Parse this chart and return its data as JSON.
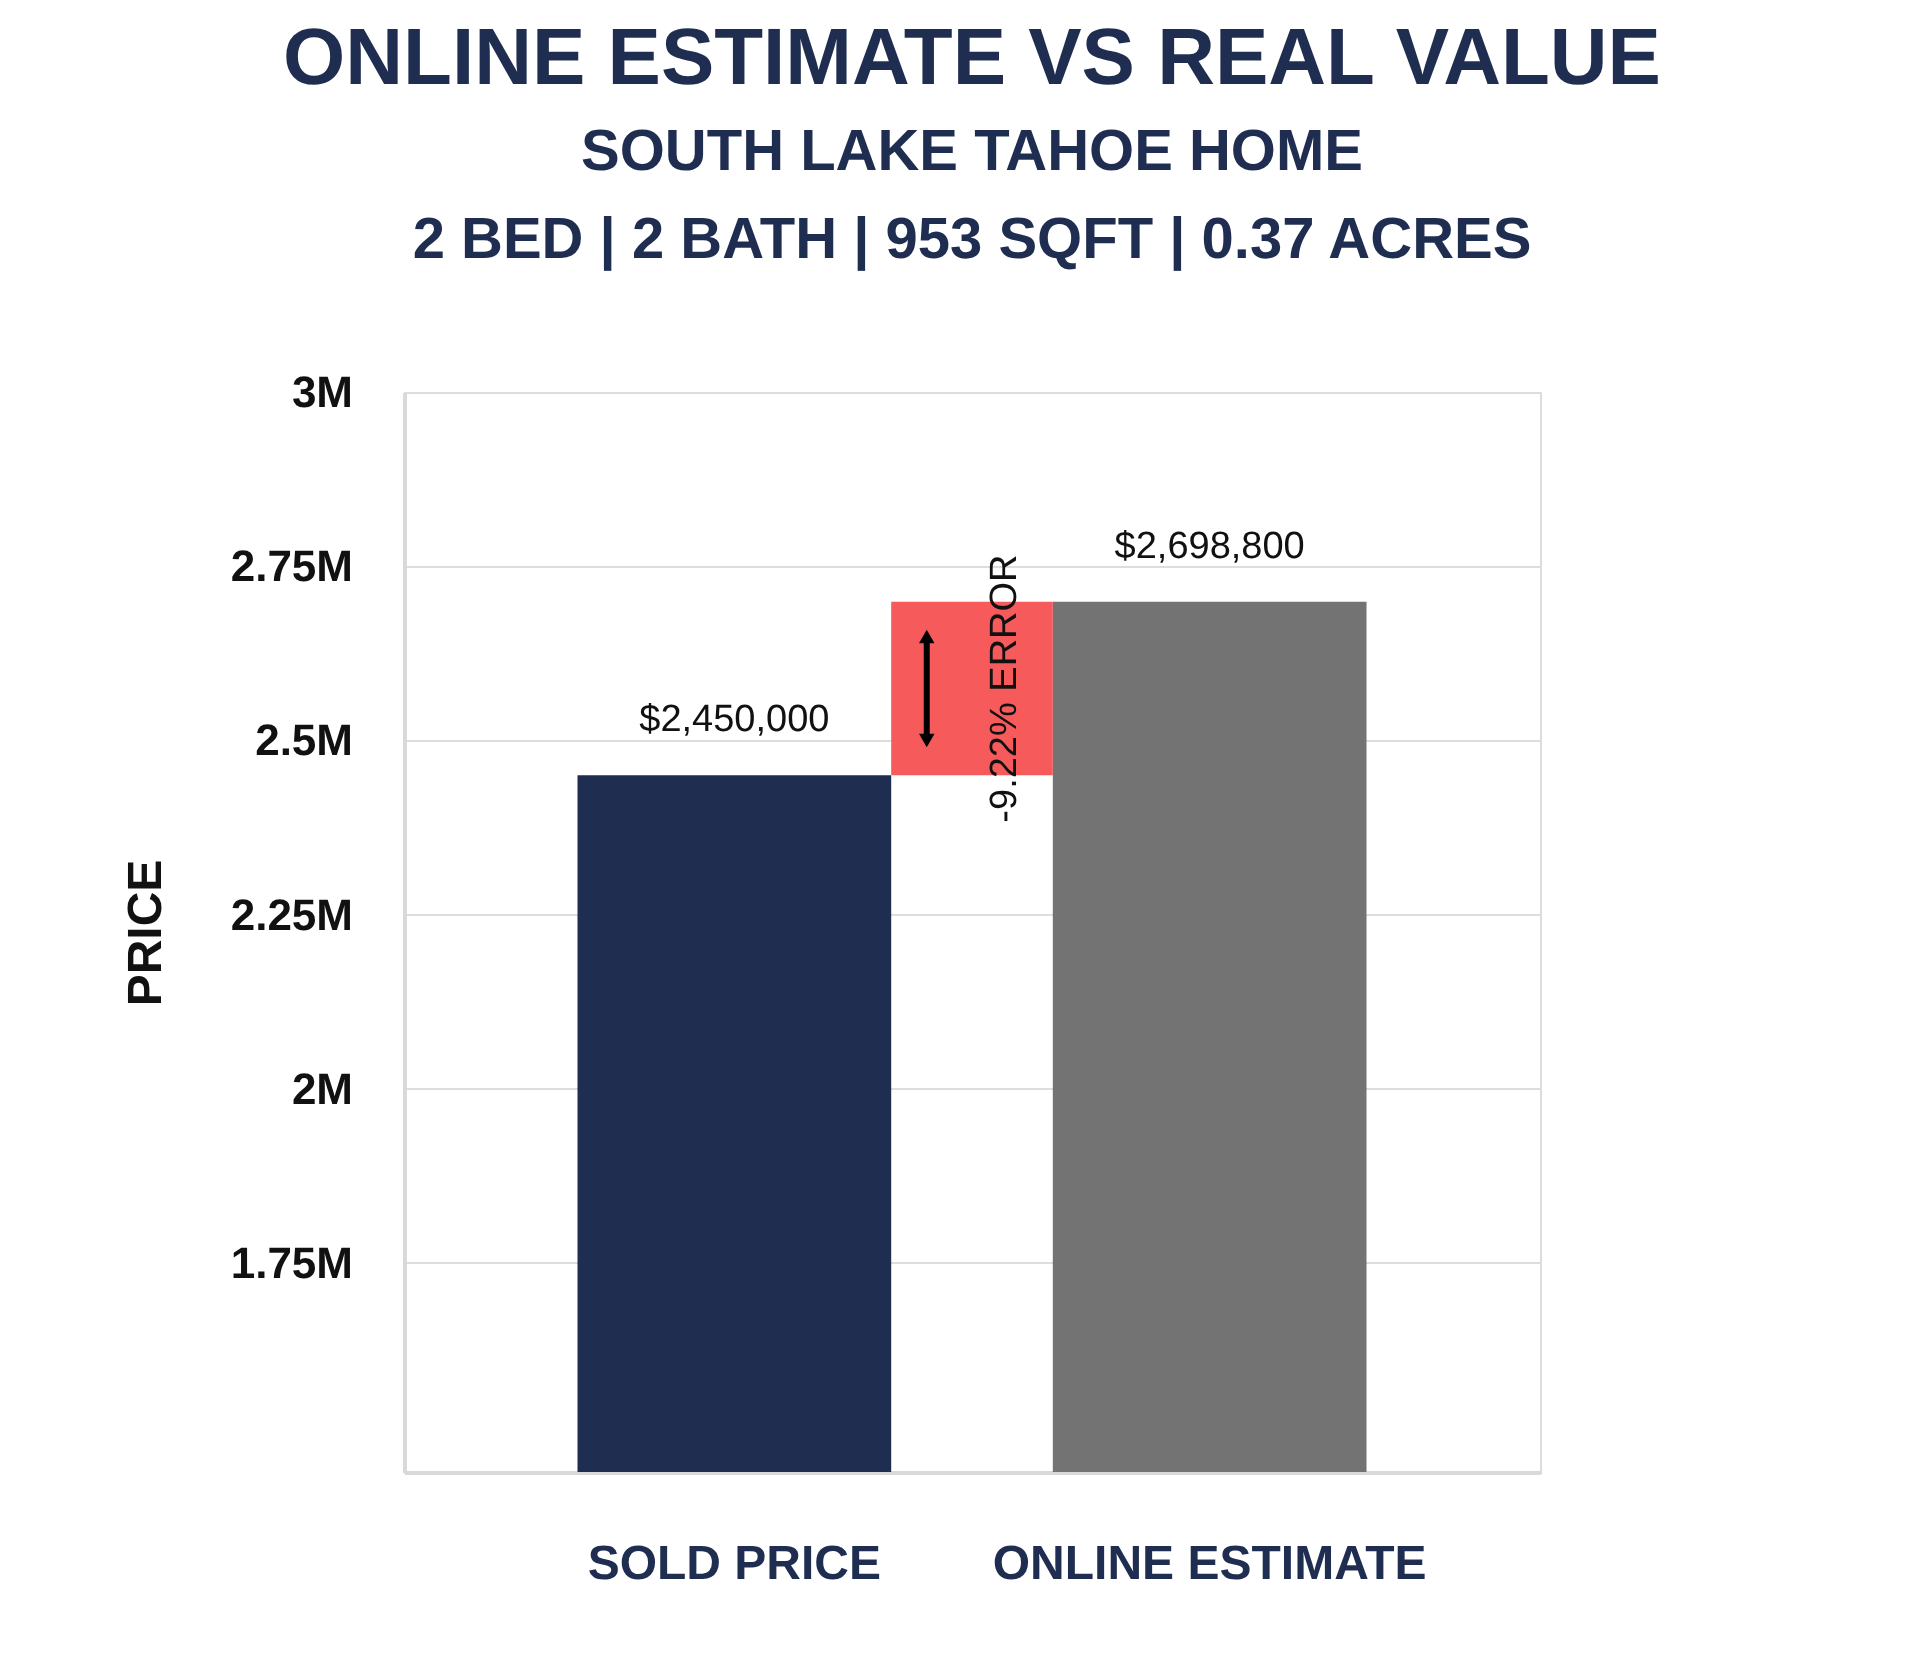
{
  "chart_data": {
    "type": "bar",
    "title": "ONLINE ESTIMATE VS REAL VALUE",
    "subtitle": "SOUTH LAKE TAHOE HOME\n2 BED | 2 BATH | 953 SQFT | 0.37 ACRES",
    "ylabel": "PRICE",
    "categories": [
      "SOLD PRICE",
      "ONLINE ESTIMATE"
    ],
    "values": [
      2450000,
      2698800
    ],
    "colors": [
      "#1f2d50",
      "#737373"
    ],
    "value_labels": [
      "$2,450,000",
      "$2,698,800"
    ],
    "ylim": [
      1450000,
      3000000
    ],
    "yticks": [
      {
        "value": 1750000,
        "label": "1.75M"
      },
      {
        "value": 2000000,
        "label": "2M"
      },
      {
        "value": 2250000,
        "label": "2.25M"
      },
      {
        "value": 2500000,
        "label": "2.5M"
      },
      {
        "value": 2750000,
        "label": "2.75M"
      },
      {
        "value": 3000000,
        "label": "3M"
      }
    ],
    "bands": [
      {
        "axis": "y",
        "from": 2450000,
        "to": 2698800,
        "label": "-9.22% ERROR",
        "color": "#f65a5a"
      }
    ],
    "grid": "y"
  }
}
